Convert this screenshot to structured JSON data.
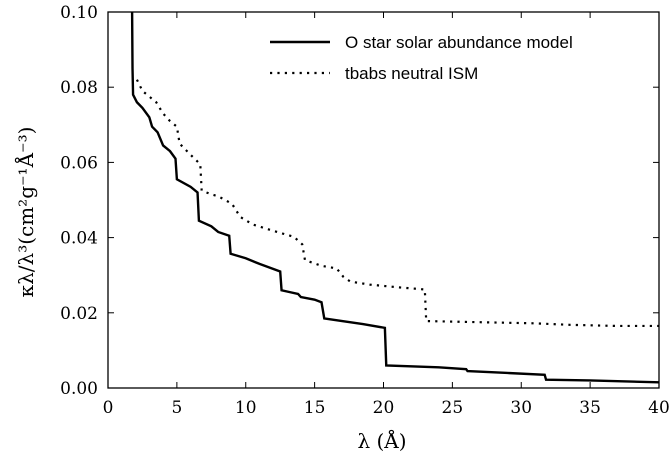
{
  "chart_data": {
    "type": "line",
    "xlabel": "λ (Å)",
    "ylabel": "κλ/λ³(cm²g⁻¹Å⁻³)",
    "xlim": [
      0,
      40
    ],
    "ylim": [
      0,
      0.1
    ],
    "x_ticks": [
      0,
      5,
      10,
      15,
      20,
      25,
      30,
      35,
      40
    ],
    "y_ticks": [
      0.0,
      0.02,
      0.04,
      0.06,
      0.08,
      0.1
    ],
    "x_tick_labels": [
      "0",
      "5",
      "10",
      "15",
      "20",
      "25",
      "30",
      "35",
      "40"
    ],
    "y_tick_labels": [
      "0.00",
      "0.02",
      "0.04",
      "0.06",
      "0.08",
      "0.10"
    ],
    "legend_position": "top-right",
    "series": [
      {
        "name": "O star solar abundance model",
        "style": "solid",
        "color": "#000000",
        "points": [
          [
            1.75,
            0.1
          ],
          [
            1.78,
            0.085
          ],
          [
            1.82,
            0.078
          ],
          [
            2.1,
            0.076
          ],
          [
            2.5,
            0.0745
          ],
          [
            3.0,
            0.072
          ],
          [
            3.2,
            0.0695
          ],
          [
            3.6,
            0.068
          ],
          [
            4.0,
            0.0645
          ],
          [
            4.5,
            0.063
          ],
          [
            4.9,
            0.061
          ],
          [
            5.0,
            0.0555
          ],
          [
            6.0,
            0.0535
          ],
          [
            6.5,
            0.052
          ],
          [
            6.6,
            0.0445
          ],
          [
            7.5,
            0.043
          ],
          [
            8.0,
            0.0415
          ],
          [
            8.8,
            0.0405
          ],
          [
            8.9,
            0.0357
          ],
          [
            10.0,
            0.0345
          ],
          [
            11.0,
            0.033
          ],
          [
            12.5,
            0.031
          ],
          [
            12.6,
            0.026
          ],
          [
            13.2,
            0.0255
          ],
          [
            13.8,
            0.025
          ],
          [
            14.0,
            0.0242
          ],
          [
            15.0,
            0.0235
          ],
          [
            15.5,
            0.0228
          ],
          [
            15.7,
            0.0185
          ],
          [
            17.0,
            0.0178
          ],
          [
            18.5,
            0.017
          ],
          [
            20.1,
            0.016
          ],
          [
            20.2,
            0.006
          ],
          [
            24.0,
            0.0055
          ],
          [
            26.0,
            0.005
          ],
          [
            26.1,
            0.0045
          ],
          [
            29.0,
            0.004
          ],
          [
            31.7,
            0.0035
          ],
          [
            31.8,
            0.0022
          ],
          [
            35.0,
            0.002
          ],
          [
            40.0,
            0.0015
          ]
        ]
      },
      {
        "name": "tbabs neutral ISM",
        "style": "dotted",
        "color": "#000000",
        "points": [
          [
            2.1,
            0.082
          ],
          [
            2.5,
            0.079
          ],
          [
            3.0,
            0.0775
          ],
          [
            3.5,
            0.076
          ],
          [
            4.0,
            0.073
          ],
          [
            4.5,
            0.071
          ],
          [
            5.0,
            0.0695
          ],
          [
            5.2,
            0.065
          ],
          [
            6.0,
            0.062
          ],
          [
            6.7,
            0.0595
          ],
          [
            6.8,
            0.0525
          ],
          [
            7.5,
            0.0515
          ],
          [
            8.0,
            0.051
          ],
          [
            9.0,
            0.049
          ],
          [
            9.6,
            0.0455
          ],
          [
            10.5,
            0.0435
          ],
          [
            12.0,
            0.0418
          ],
          [
            13.5,
            0.0402
          ],
          [
            14.1,
            0.0382
          ],
          [
            14.3,
            0.034
          ],
          [
            15.5,
            0.0325
          ],
          [
            16.6,
            0.0318
          ],
          [
            17.1,
            0.0295
          ],
          [
            17.6,
            0.0283
          ],
          [
            19.0,
            0.0275
          ],
          [
            21.0,
            0.0268
          ],
          [
            23.0,
            0.0262
          ],
          [
            23.1,
            0.0178
          ],
          [
            27.0,
            0.0175
          ],
          [
            31.0,
            0.0172
          ],
          [
            33.5,
            0.0168
          ],
          [
            37.0,
            0.0165
          ],
          [
            40.0,
            0.0165
          ]
        ]
      }
    ]
  }
}
